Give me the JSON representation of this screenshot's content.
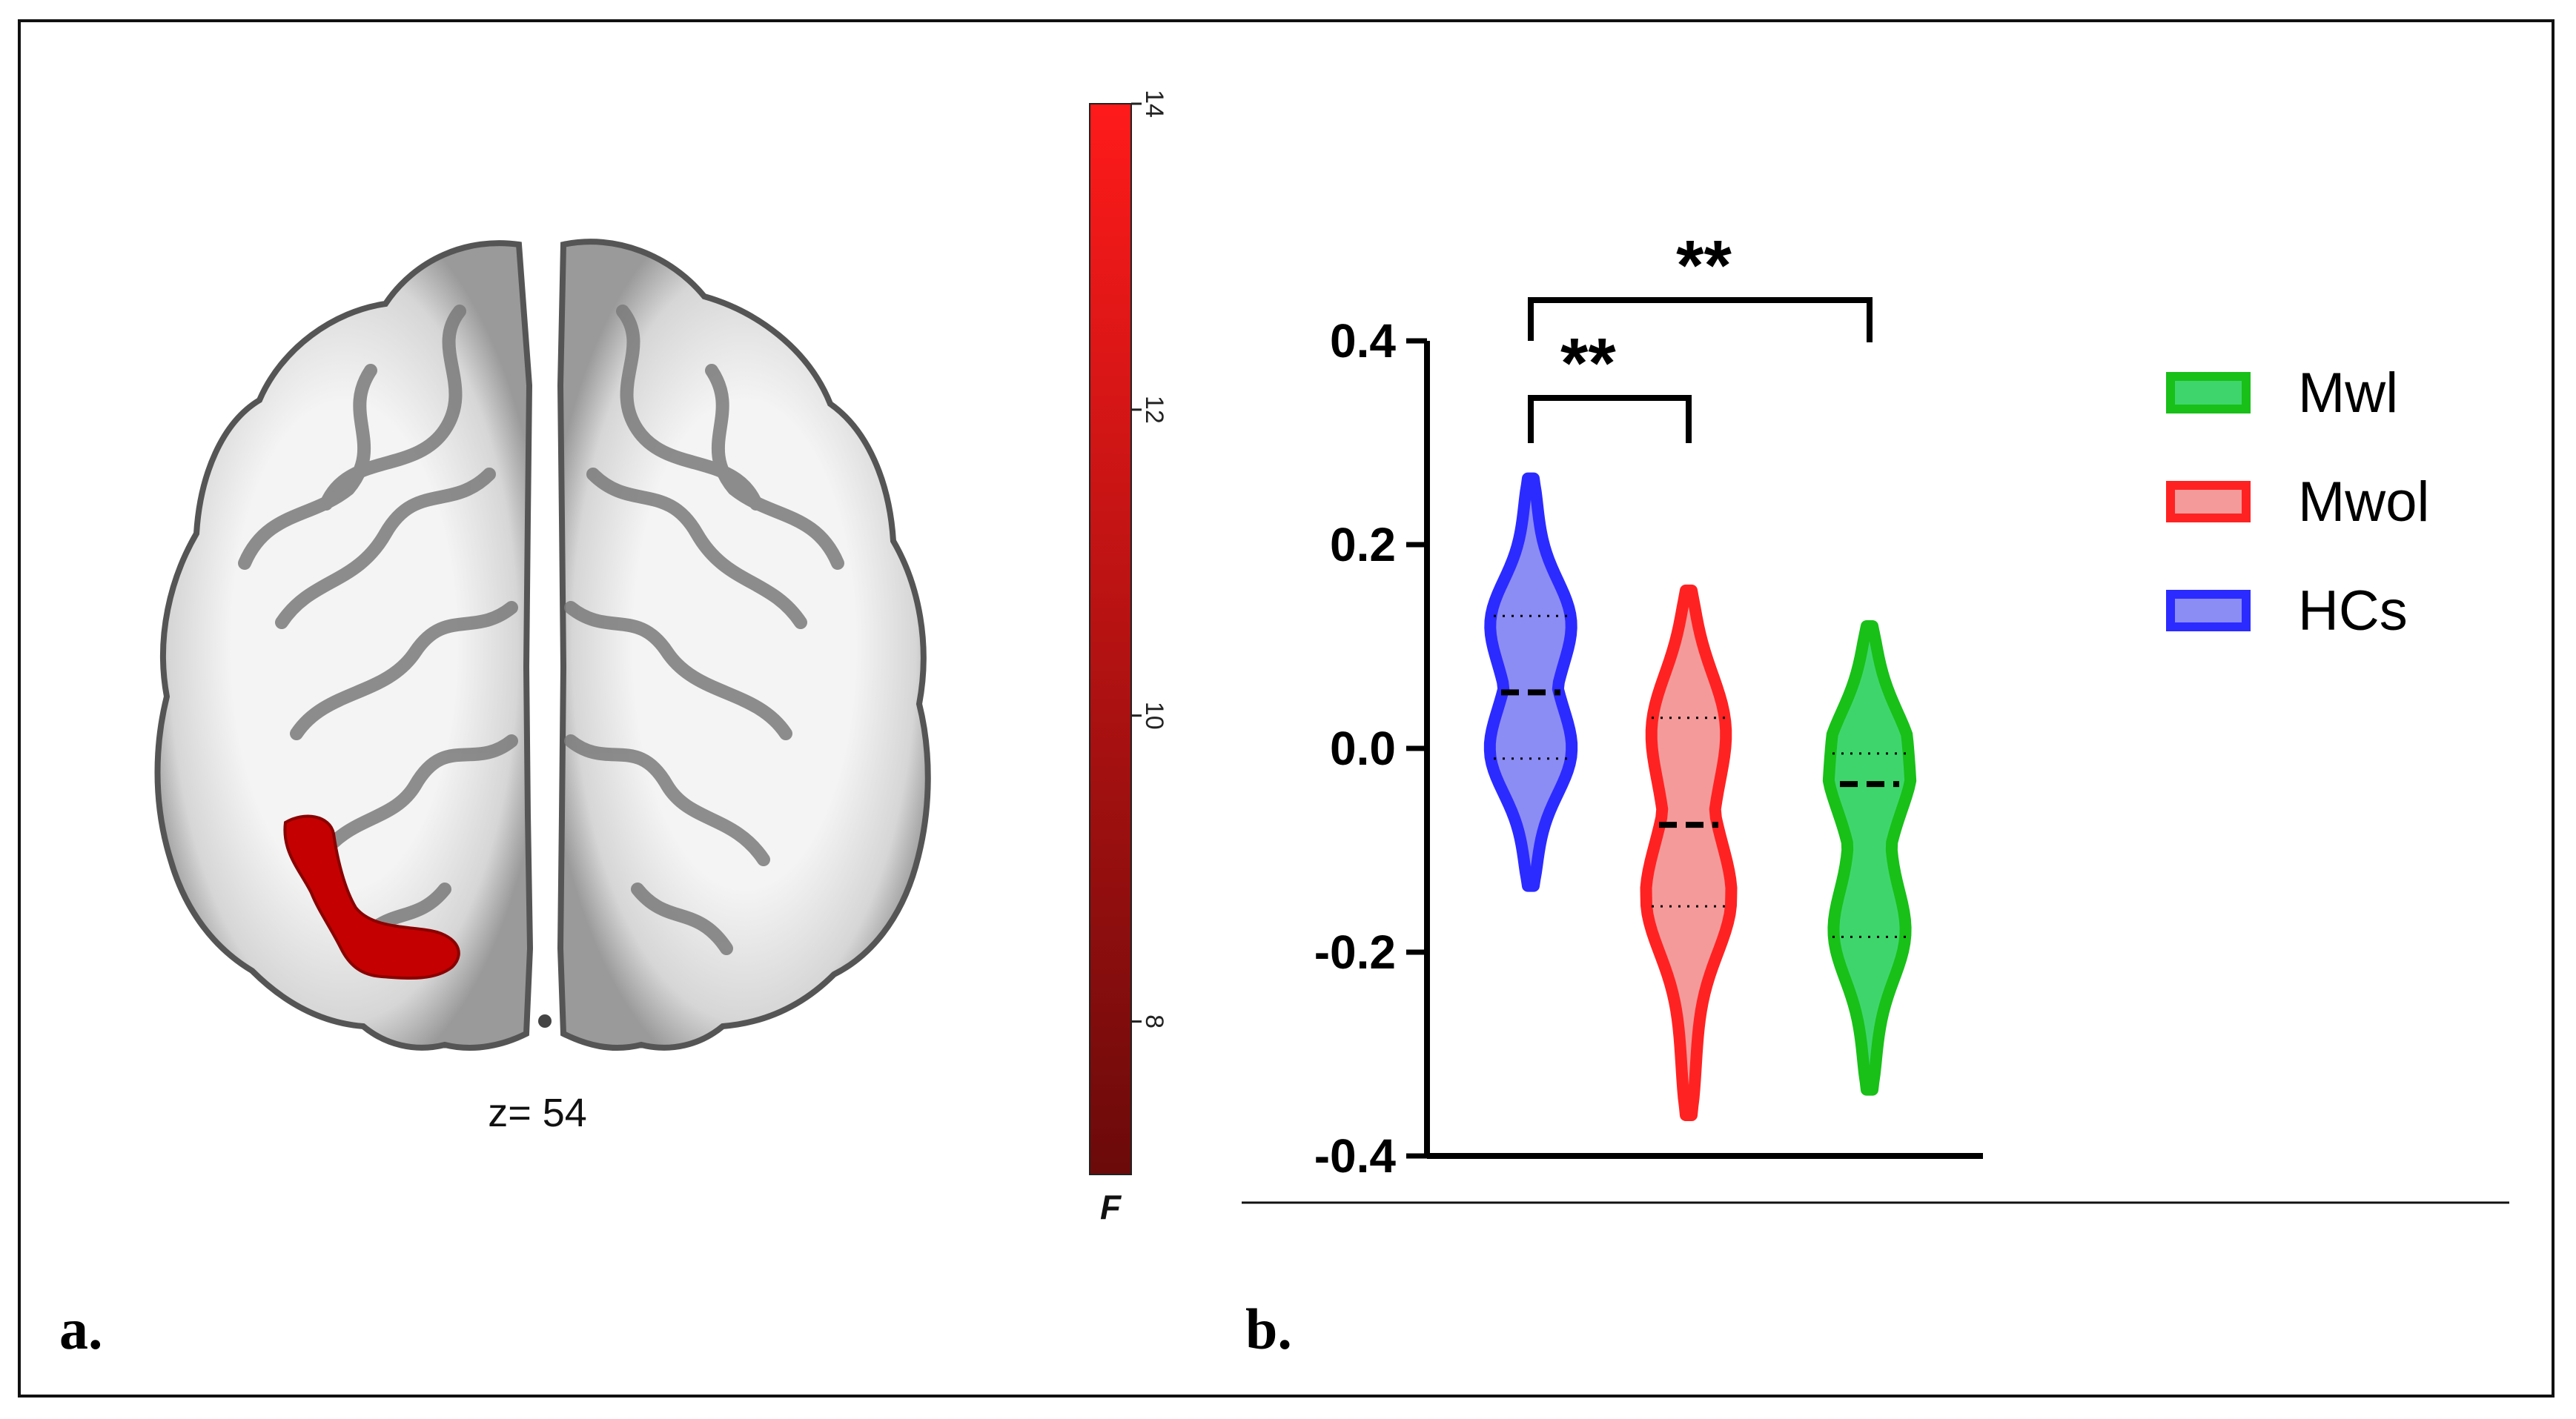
{
  "panel_a": {
    "letter": "a.",
    "slice_label": "z= 54",
    "colorbar": {
      "label": "F",
      "ticks": [
        "14",
        "12",
        "10",
        "8"
      ],
      "tick_values": [
        14,
        12,
        10,
        8
      ],
      "range": [
        7,
        14
      ],
      "color_high": "#ff1a1a",
      "color_low": "#6b0a0a"
    },
    "cluster_color": "#cc0000"
  },
  "panel_b": {
    "letter": "b.",
    "significance": [
      "**",
      "**"
    ]
  },
  "chart_data": {
    "type": "violin",
    "title": "",
    "xlabel": "",
    "ylabel": "",
    "ylim": [
      -0.4,
      0.4
    ],
    "yticks": [
      0.4,
      0.2,
      0.0,
      -0.2,
      -0.4
    ],
    "ytick_labels": [
      "0.4",
      "0.2",
      "0.0",
      "-0.2",
      "-0.4"
    ],
    "legend_position": "top-right",
    "series": [
      {
        "name": "HCs",
        "color": "#2b2bff",
        "fill": "#8c8cf5",
        "min": -0.135,
        "max": 0.265,
        "median": 0.055,
        "q1": -0.01,
        "q3": 0.13
      },
      {
        "name": "Mwol",
        "color": "#ff2222",
        "fill": "#f59a9a",
        "min": -0.36,
        "max": 0.155,
        "median": -0.075,
        "q1": -0.155,
        "q3": 0.03
      },
      {
        "name": "Mwl",
        "color": "#18c018",
        "fill": "#3ed66c",
        "min": -0.335,
        "max": 0.12,
        "median": -0.035,
        "q1": -0.185,
        "q3": -0.005
      }
    ],
    "legend_order": [
      "Mwl",
      "Mwol",
      "HCs"
    ],
    "comparisons": [
      {
        "from": "HCs",
        "to": "Mwol",
        "label": "**"
      },
      {
        "from": "HCs",
        "to": "Mwl",
        "label": "**"
      }
    ]
  }
}
